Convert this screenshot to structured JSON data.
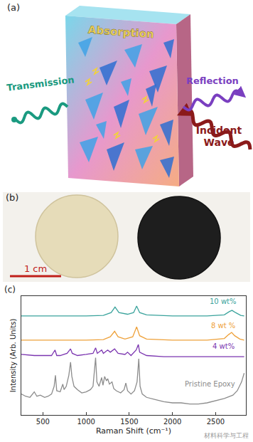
{
  "panel_a": {
    "label": "(a)",
    "absorption": "Absorption",
    "transmission": "Transmission",
    "reflection": "Reflection",
    "incident": "Incident Wave"
  },
  "panel_b": {
    "label": "(b)",
    "scale_bar": "1 cm"
  },
  "chart_data": {
    "type": "line",
    "panel_label": "(c)",
    "x_label": "Raman Shift (cm⁻¹)",
    "y_label": "Intensity (Arb. Units)",
    "xlim": [
      250,
      2850
    ],
    "xticks": [
      500,
      1000,
      1500,
      2000,
      2500
    ],
    "ylim": [
      0,
      10.8
    ],
    "yticks": [],
    "tick_labels": "x",
    "grid": false,
    "series": [
      {
        "name": "10 wt%",
        "color": "#3aa39c",
        "x": [
          250,
          600,
          1000,
          1200,
          1290,
          1335,
          1380,
          1480,
          1550,
          1585,
          1620,
          1700,
          2000,
          2400,
          2600,
          2660,
          2690,
          2730,
          2790,
          2830
        ],
        "values": [
          9.0,
          9.0,
          9.0,
          9.05,
          9.3,
          9.8,
          9.3,
          9.15,
          9.3,
          9.9,
          9.3,
          9.1,
          9.0,
          9.0,
          9.1,
          9.4,
          9.5,
          9.3,
          9.05,
          9.0
        ]
      },
      {
        "name": "8 wt %",
        "color": "#eea13a",
        "x": [
          250,
          600,
          1000,
          1200,
          1280,
          1330,
          1370,
          1450,
          1540,
          1585,
          1620,
          1700,
          2000,
          2400,
          2600,
          2650,
          2685,
          2720,
          2780,
          2830
        ],
        "values": [
          6.8,
          6.8,
          6.8,
          6.85,
          7.1,
          7.6,
          7.1,
          6.9,
          7.1,
          8.0,
          7.2,
          6.9,
          6.8,
          6.8,
          6.95,
          7.3,
          7.5,
          7.2,
          6.9,
          6.8
        ]
      },
      {
        "name": "4 wt%",
        "color": "#7b35b0",
        "x": [
          250,
          400,
          600,
          640,
          660,
          700,
          780,
          820,
          840,
          900,
          1000,
          1080,
          1110,
          1130,
          1180,
          1200,
          1250,
          1280,
          1330,
          1370,
          1450,
          1480,
          1520,
          1580,
          1605,
          1620,
          1700,
          1900,
          2100,
          2300,
          2500,
          2700,
          2830
        ],
        "values": [
          5.5,
          5.4,
          5.4,
          5.9,
          5.4,
          5.4,
          5.6,
          6.0,
          5.6,
          5.4,
          5.5,
          5.6,
          6.1,
          5.6,
          5.9,
          5.6,
          5.9,
          5.7,
          6.0,
          5.6,
          5.5,
          5.7,
          5.4,
          5.9,
          6.4,
          5.7,
          5.4,
          5.3,
          5.3,
          5.3,
          5.3,
          5.3,
          5.3
        ]
      },
      {
        "name": "Pristine Epoxy",
        "color": "#8c8c8c",
        "x": [
          250,
          300,
          350,
          400,
          430,
          470,
          520,
          560,
          600,
          630,
          645,
          660,
          700,
          730,
          745,
          770,
          800,
          820,
          835,
          860,
          900,
          950,
          1000,
          1050,
          1080,
          1110,
          1125,
          1150,
          1180,
          1195,
          1215,
          1235,
          1250,
          1270,
          1300,
          1320,
          1350,
          1400,
          1440,
          1460,
          1480,
          1520,
          1560,
          1590,
          1610,
          1625,
          1650,
          1700,
          1800,
          1900,
          2000,
          2100,
          2200,
          2300,
          2400,
          2500,
          2600,
          2700,
          2750,
          2800,
          2830
        ],
        "values": [
          1.9,
          1.7,
          1.6,
          2.1,
          1.7,
          1.8,
          1.6,
          1.7,
          1.9,
          2.6,
          3.6,
          2.2,
          2.1,
          2.8,
          2.3,
          2.6,
          3.6,
          4.8,
          3.5,
          2.6,
          2.3,
          2.0,
          2.1,
          2.3,
          2.6,
          5.2,
          3.0,
          2.6,
          3.4,
          2.7,
          3.5,
          3.1,
          3.3,
          2.8,
          3.0,
          2.4,
          2.2,
          2.0,
          2.3,
          2.9,
          2.2,
          1.9,
          2.2,
          3.0,
          5.1,
          2.6,
          1.9,
          1.6,
          1.4,
          1.2,
          1.1,
          1.1,
          1.0,
          1.0,
          1.1,
          1.3,
          1.5,
          1.8,
          2.2,
          3.0,
          3.8
        ]
      }
    ]
  },
  "watermark": "材料科学与工程"
}
